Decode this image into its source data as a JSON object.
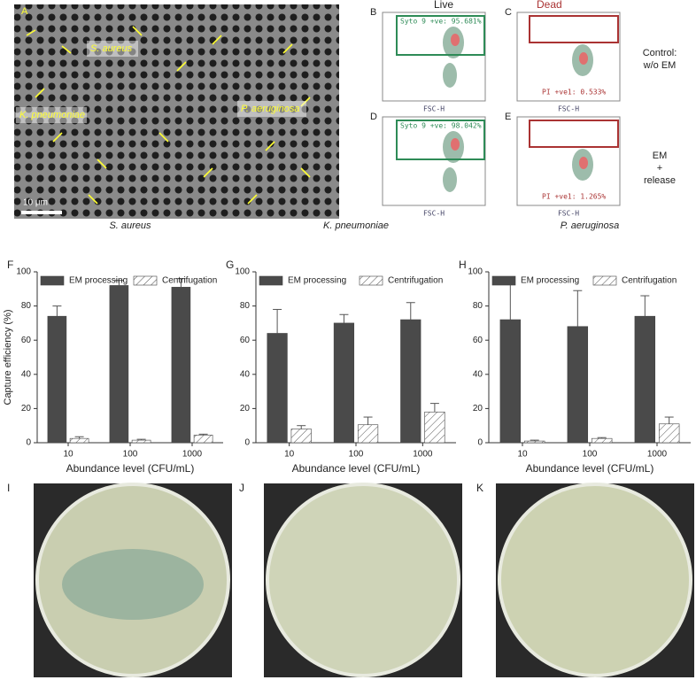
{
  "panels": {
    "sem": {
      "label": "A",
      "annotations": [
        "S. aureus",
        "K. pneumoniae",
        "P. aeruginosa"
      ],
      "scale_bar": "10 µm"
    },
    "flow": {
      "columns": [
        "Live",
        "Dead"
      ],
      "rows": [
        [
          "Control:",
          "w/o EM"
        ],
        [
          "EM",
          "+",
          "release"
        ]
      ],
      "plots": [
        {
          "label": "B",
          "gate": "Syto 9 +ve: 95.681%",
          "xlabel": "FSC-H"
        },
        {
          "label": "C",
          "gate": "PI +ve1: 0.533%",
          "xlabel": "FSC-H"
        },
        {
          "label": "D",
          "gate": "Syto 9 +ve: 98.042%",
          "xlabel": "FSC-H"
        },
        {
          "label": "E",
          "gate": "PI +ve1: 1.265%",
          "xlabel": "FSC-H"
        }
      ]
    },
    "plates": [
      "I",
      "J",
      "K"
    ]
  },
  "chart_data": [
    {
      "type": "bar",
      "label": "F",
      "title": "S. aureus",
      "ylabel": "Capture efficiency (%)",
      "xlabel": "Abundance level (CFU/mL)",
      "categories": [
        "10",
        "100",
        "1000"
      ],
      "series": [
        {
          "name": "EM processing",
          "color": "#4a4a4a",
          "values": [
            74,
            92,
            91
          ],
          "errors": [
            6,
            3,
            5
          ]
        },
        {
          "name": "Centrifugation",
          "color": "#ffffff",
          "hatch": true,
          "values": [
            2.5,
            1.5,
            4.5
          ],
          "errors": [
            1,
            0.5,
            0.5
          ]
        }
      ],
      "ylim": [
        0,
        100
      ],
      "yticks": [
        0,
        20,
        40,
        60,
        80,
        100
      ],
      "legend": "top"
    },
    {
      "type": "bar",
      "label": "G",
      "title": "K. pneumoniae",
      "xlabel": "Abundance level (CFU/mL)",
      "categories": [
        "10",
        "100",
        "1000"
      ],
      "series": [
        {
          "name": "EM processing",
          "color": "#4a4a4a",
          "values": [
            64,
            70,
            72
          ],
          "errors": [
            14,
            5,
            10
          ]
        },
        {
          "name": "Centrifugation",
          "color": "#ffffff",
          "hatch": true,
          "values": [
            8,
            10.5,
            18
          ],
          "errors": [
            2,
            4.5,
            5
          ]
        }
      ],
      "ylim": [
        0,
        100
      ],
      "yticks": [
        0,
        20,
        40,
        60,
        80,
        100
      ],
      "legend": "top"
    },
    {
      "type": "bar",
      "label": "H",
      "title": "P. aeruginosa",
      "xlabel": "Abundance level (CFU/mL)",
      "categories": [
        "10",
        "100",
        "1000"
      ],
      "series": [
        {
          "name": "EM processing",
          "color": "#4a4a4a",
          "values": [
            72,
            68,
            74
          ],
          "errors": [
            25,
            21,
            12
          ]
        },
        {
          "name": "Centrifugation",
          "color": "#ffffff",
          "hatch": true,
          "values": [
            1,
            2.5,
            11
          ],
          "errors": [
            0.5,
            0.5,
            4
          ]
        }
      ],
      "ylim": [
        0,
        100
      ],
      "yticks": [
        0,
        20,
        40,
        60,
        80,
        100
      ],
      "legend": "top"
    }
  ]
}
